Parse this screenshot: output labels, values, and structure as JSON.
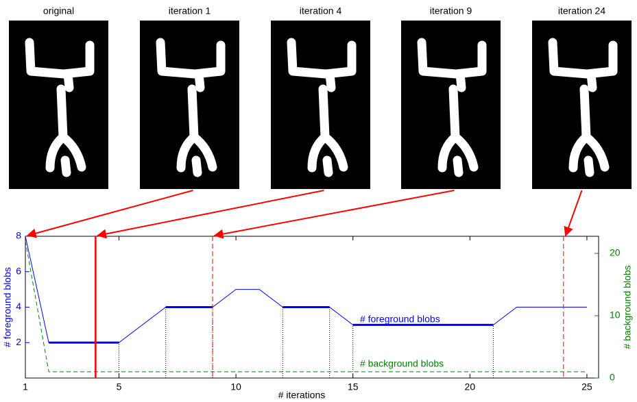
{
  "panels": [
    "original",
    "iteration 1",
    "iteration 4",
    "iteration 9",
    "iteration 24"
  ],
  "chart_data": {
    "type": "line",
    "xlabel": "# iterations",
    "ylabel": "# foreground blobs",
    "y2label": "# background blobs",
    "xlim": [
      1,
      25.5
    ],
    "xticks": [
      1,
      5,
      10,
      15,
      20,
      25
    ],
    "ylim": [
      0,
      8
    ],
    "yticks": [
      2,
      4,
      6,
      8
    ],
    "y2lim": [
      0,
      22.75
    ],
    "y2ticks": [
      0,
      10,
      20
    ],
    "series": [
      {
        "name": "# foreground blobs",
        "color": "#0000ff",
        "x": [
          1,
          2,
          5,
          7,
          9,
          10,
          11,
          12,
          14,
          15,
          21,
          22,
          25
        ],
        "values": [
          8,
          2,
          2,
          4,
          4,
          5,
          5,
          4,
          4,
          3,
          3,
          4,
          4
        ]
      },
      {
        "name": "# background blobs",
        "color": "#008000",
        "axis": "y2",
        "dash": true,
        "x": [
          1,
          2,
          25
        ],
        "values": [
          22,
          1,
          1
        ]
      }
    ],
    "annotations": [
      {
        "text": "# foreground blobs",
        "x": 15.3,
        "y": 3.3,
        "series": 0
      },
      {
        "text": "# background blobs",
        "x": 15.3,
        "y": 2.2,
        "series": 1
      }
    ],
    "highlight_spans": [
      [
        2,
        5
      ],
      [
        7,
        9
      ],
      [
        12,
        14
      ],
      [
        15,
        21
      ]
    ],
    "guides": [
      5,
      7,
      9,
      12,
      14,
      15,
      21
    ],
    "red_lines": [
      {
        "x": 4,
        "dash": false
      },
      {
        "x": 9,
        "dash": true
      },
      {
        "x": 24,
        "dash": true
      }
    ],
    "arrows_to_x": [
      null,
      1,
      4,
      9,
      24
    ],
    "marker_color": "#ff0000"
  }
}
